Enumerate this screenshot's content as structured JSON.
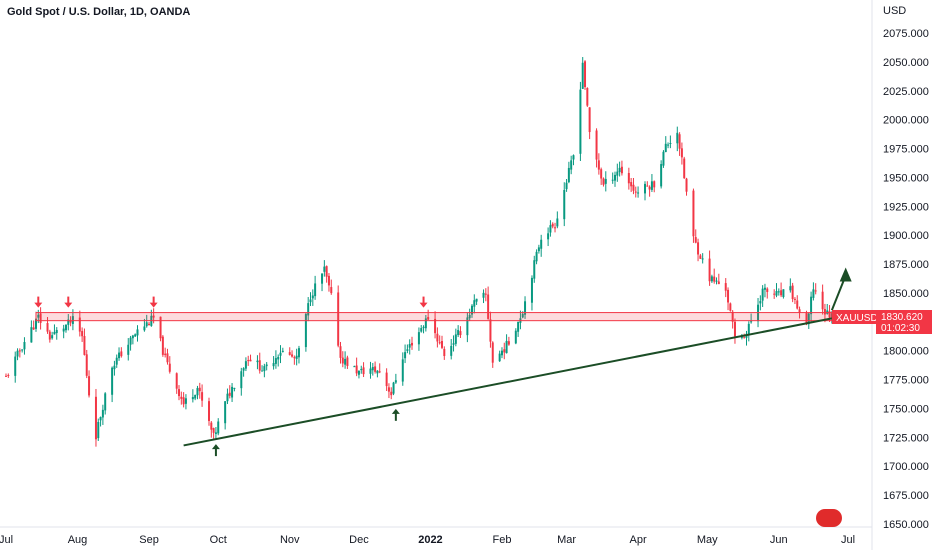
{
  "header": {
    "title": "Gold Spot / U.S. Dollar, 1D, OANDA"
  },
  "price_axis": {
    "currency": "USD"
  },
  "price_tag": {
    "symbol": "XAUUSD",
    "price": "1830.620",
    "countdown": "01:02:30"
  },
  "colors": {
    "up": "#089981",
    "down": "#f23645",
    "trend": "#1b4d26",
    "zone": "#f23645"
  },
  "logo": {
    "name": "tradingview-logo"
  },
  "chart_data": {
    "type": "candlestick",
    "title": "Gold Spot / U.S. Dollar, 1D, OANDA",
    "ylabel": "USD",
    "ylim": [
      1650,
      2085
    ],
    "yticks": [
      1650,
      1675,
      1700,
      1725,
      1750,
      1775,
      1800,
      1825,
      1850,
      1875,
      1900,
      1925,
      1950,
      1975,
      2000,
      2025,
      2050,
      2075
    ],
    "ytick_labels": [
      "1650.000",
      "1675.000",
      "1700.000",
      "1725.000",
      "1750.000",
      "1775.000",
      "1800.000",
      "1825.000",
      "1850.000",
      "1875.000",
      "1900.000",
      "1925.000",
      "1950.000",
      "1975.000",
      "2000.000",
      "2025.000",
      "2050.000",
      "2075.000"
    ],
    "x_dates": [
      "2021-07-01",
      "2021-08-01",
      "2021-09-01",
      "2021-10-01",
      "2021-11-01",
      "2021-12-01",
      "2022-01-01",
      "2022-02-01",
      "2022-03-01",
      "2022-04-01",
      "2022-05-01",
      "2022-06-01",
      "2022-07-01"
    ],
    "x_labels": [
      "Jul",
      "Aug",
      "Sep",
      "Oct",
      "Nov",
      "Dec",
      "2022",
      "Feb",
      "Mar",
      "Apr",
      "May",
      "Jun",
      "Jul"
    ],
    "close_path": [
      [
        "2021-07-01",
        1777
      ],
      [
        "2021-07-09",
        1808
      ],
      [
        "2021-07-15",
        1829
      ],
      [
        "2021-07-20",
        1812
      ],
      [
        "2021-07-30",
        1826
      ],
      [
        "2021-08-03",
        1812
      ],
      [
        "2021-08-06",
        1763
      ],
      [
        "2021-08-09",
        1727
      ],
      [
        "2021-08-16",
        1787
      ],
      [
        "2021-08-27",
        1817
      ],
      [
        "2021-09-03",
        1828
      ],
      [
        "2021-09-08",
        1793
      ],
      [
        "2021-09-16",
        1754
      ],
      [
        "2021-09-22",
        1768
      ],
      [
        "2021-09-29",
        1725
      ],
      [
        "2021-10-05",
        1760
      ],
      [
        "2021-10-14",
        1795
      ],
      [
        "2021-10-21",
        1783
      ],
      [
        "2021-10-28",
        1800
      ],
      [
        "2021-11-04",
        1792
      ],
      [
        "2021-11-10",
        1848
      ],
      [
        "2021-11-16",
        1870
      ],
      [
        "2021-11-19",
        1846
      ],
      [
        "2021-11-23",
        1794
      ],
      [
        "2021-12-01",
        1781
      ],
      [
        "2021-12-06",
        1784
      ],
      [
        "2021-12-10",
        1782
      ],
      [
        "2021-12-15",
        1763
      ],
      [
        "2021-12-20",
        1795
      ],
      [
        "2021-12-31",
        1829
      ],
      [
        "2022-01-07",
        1797
      ],
      [
        "2022-01-14",
        1817
      ],
      [
        "2022-01-20",
        1841
      ],
      [
        "2022-01-25",
        1848
      ],
      [
        "2022-01-28",
        1790
      ],
      [
        "2022-02-04",
        1807
      ],
      [
        "2022-02-10",
        1835
      ],
      [
        "2022-02-18",
        1899
      ],
      [
        "2022-02-24",
        1910
      ],
      [
        "2022-03-04",
        1969
      ],
      [
        "2022-03-08",
        2050
      ],
      [
        "2022-03-11",
        1988
      ],
      [
        "2022-03-17",
        1943
      ],
      [
        "2022-03-24",
        1958
      ],
      [
        "2022-03-31",
        1937
      ],
      [
        "2022-04-08",
        1945
      ],
      [
        "2022-04-13",
        1977
      ],
      [
        "2022-04-18",
        1990
      ],
      [
        "2022-04-25",
        1897
      ],
      [
        "2022-05-02",
        1863
      ],
      [
        "2022-05-09",
        1854
      ],
      [
        "2022-05-13",
        1811
      ],
      [
        "2022-05-18",
        1815
      ],
      [
        "2022-05-25",
        1852
      ],
      [
        "2022-06-01",
        1848
      ],
      [
        "2022-06-06",
        1852
      ],
      [
        "2022-06-13",
        1819
      ],
      [
        "2022-06-16",
        1855
      ],
      [
        "2022-06-21",
        1833
      ],
      [
        "2022-06-24",
        1830.62
      ]
    ],
    "resistance_zone": {
      "from": 1826,
      "to": 1833,
      "start": "2021-07-14",
      "end": "2022-06-24"
    },
    "trendline": {
      "points": [
        [
          "2021-09-16",
          1718
        ],
        [
          "2022-06-24",
          1828
        ]
      ]
    },
    "arrow_up": {
      "from": [
        "2022-06-24",
        1835
      ],
      "to": [
        "2022-06-30",
        1872
      ]
    },
    "resistance_markers": [
      "2021-07-15",
      "2021-07-28",
      "2021-09-03",
      "2021-12-29"
    ],
    "support_markers": [
      "2021-09-30",
      "2021-12-17"
    ],
    "last_price": 1830.62
  }
}
